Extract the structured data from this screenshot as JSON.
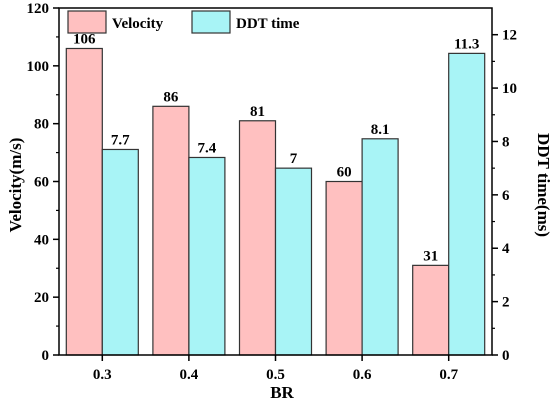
{
  "chart_data": {
    "type": "bar",
    "categories": [
      "0.3",
      "0.4",
      "0.5",
      "0.6",
      "0.7"
    ],
    "series": [
      {
        "name": "Velocity",
        "values": [
          106,
          86,
          81,
          60,
          31
        ],
        "axis": "left",
        "color": "#ffc0c0",
        "data_labels": [
          "106",
          "86",
          "81",
          "60",
          "31"
        ]
      },
      {
        "name": "DDT time",
        "values": [
          7.7,
          7.4,
          7.0,
          8.1,
          11.3
        ],
        "axis": "right",
        "color": "#a8f4f6",
        "data_labels": [
          "7.7",
          "7.4",
          "7",
          "8.1",
          "11.3"
        ]
      }
    ],
    "xlabel": "BR",
    "ylabel": "Velocity(m/s)",
    "y2label": "DDT time(ms)",
    "ylim": [
      0,
      120
    ],
    "y2lim": [
      0,
      13
    ],
    "yticks": [
      "0",
      "20",
      "40",
      "60",
      "80",
      "100",
      "120"
    ],
    "y2ticks": [
      "0",
      "2",
      "4",
      "6",
      "8",
      "10",
      "12"
    ],
    "legend_position": "top-left",
    "grid": false,
    "edge_color": "#333333"
  }
}
